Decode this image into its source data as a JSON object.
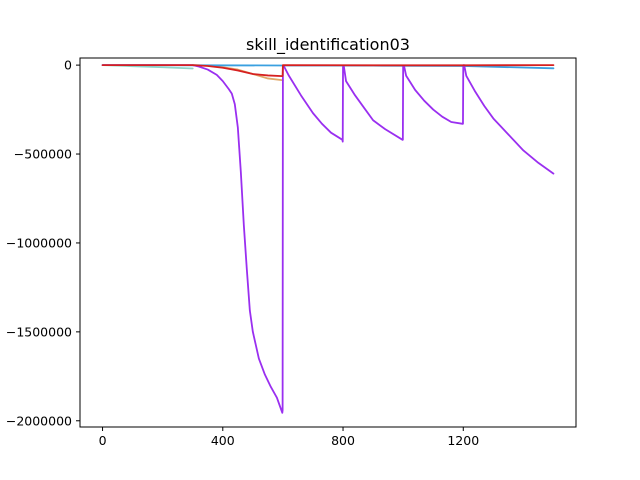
{
  "chart_data": {
    "type": "line",
    "title": "skill_identification03",
    "xlabel": "",
    "ylabel": "",
    "xlim": [
      -75,
      1575
    ],
    "ylim": [
      -2035000,
      40000
    ],
    "xticks": [
      0,
      400,
      800,
      1200
    ],
    "yticks": [
      0,
      -500000,
      -1000000,
      -1500000,
      -2000000
    ],
    "xtick_labels": [
      "0",
      "400",
      "800",
      "1200"
    ],
    "ytick_labels": [
      "0",
      "−500000",
      "−1000000",
      "−1500000",
      "−2000000"
    ],
    "grid": false,
    "legend": "none",
    "series": [
      {
        "color": "#8fd4c8",
        "x": [
          0,
          100,
          200,
          300
        ],
        "y": [
          0,
          -6000,
          -12000,
          -19000
        ]
      },
      {
        "color": "#e0a86a",
        "x": [
          300,
          350,
          400,
          450,
          500,
          550,
          600
        ],
        "y": [
          0,
          -3000,
          -12000,
          -25000,
          -50000,
          -75000,
          -85000
        ]
      },
      {
        "color": "#3aa0e0",
        "x": [
          0,
          300,
          600,
          900,
          1200,
          1500
        ],
        "y": [
          0,
          -1000,
          -2000,
          -3000,
          -5000,
          -18000
        ]
      },
      {
        "color": "#9a2ff0",
        "x": [
          0,
          300,
          320,
          350,
          380,
          400,
          420,
          430,
          440,
          450,
          460,
          470,
          480,
          490,
          500,
          520,
          540,
          560,
          580,
          598,
          599,
          600,
          603,
          620,
          660,
          700,
          730,
          760,
          798,
          799,
          800,
          803,
          810,
          840,
          870,
          900,
          940,
          998,
          999,
          1000,
          1003,
          1010,
          1040,
          1070,
          1100,
          1130,
          1160,
          1198,
          1199,
          1200,
          1203,
          1210,
          1240,
          1270,
          1300,
          1350,
          1400,
          1450,
          1500
        ],
        "y": [
          0,
          0,
          -8000,
          -25000,
          -55000,
          -90000,
          -135000,
          -160000,
          -220000,
          -350000,
          -600000,
          -900000,
          -1150000,
          -1380000,
          -1500000,
          -1650000,
          -1740000,
          -1810000,
          -1870000,
          -1955000,
          -1940000,
          -5000,
          -5000,
          -60000,
          -170000,
          -270000,
          -330000,
          -380000,
          -420000,
          -430000,
          -10000,
          -10000,
          -90000,
          -170000,
          -240000,
          -310000,
          -360000,
          -420000,
          -420000,
          -5000,
          -5000,
          -60000,
          -140000,
          -200000,
          -250000,
          -290000,
          -320000,
          -330000,
          -330000,
          0,
          0,
          -60000,
          -150000,
          -230000,
          -300000,
          -390000,
          -480000,
          -550000,
          -610000
        ]
      },
      {
        "color": "#d62020",
        "x": [
          0,
          300,
          350,
          400,
          450,
          500,
          550,
          598,
          599,
          600,
          900,
          1200,
          1500
        ],
        "y": [
          0,
          0,
          -5000,
          -15000,
          -30000,
          -50000,
          -58000,
          -62000,
          -60000,
          0,
          -1000,
          -1000,
          0
        ]
      }
    ]
  }
}
